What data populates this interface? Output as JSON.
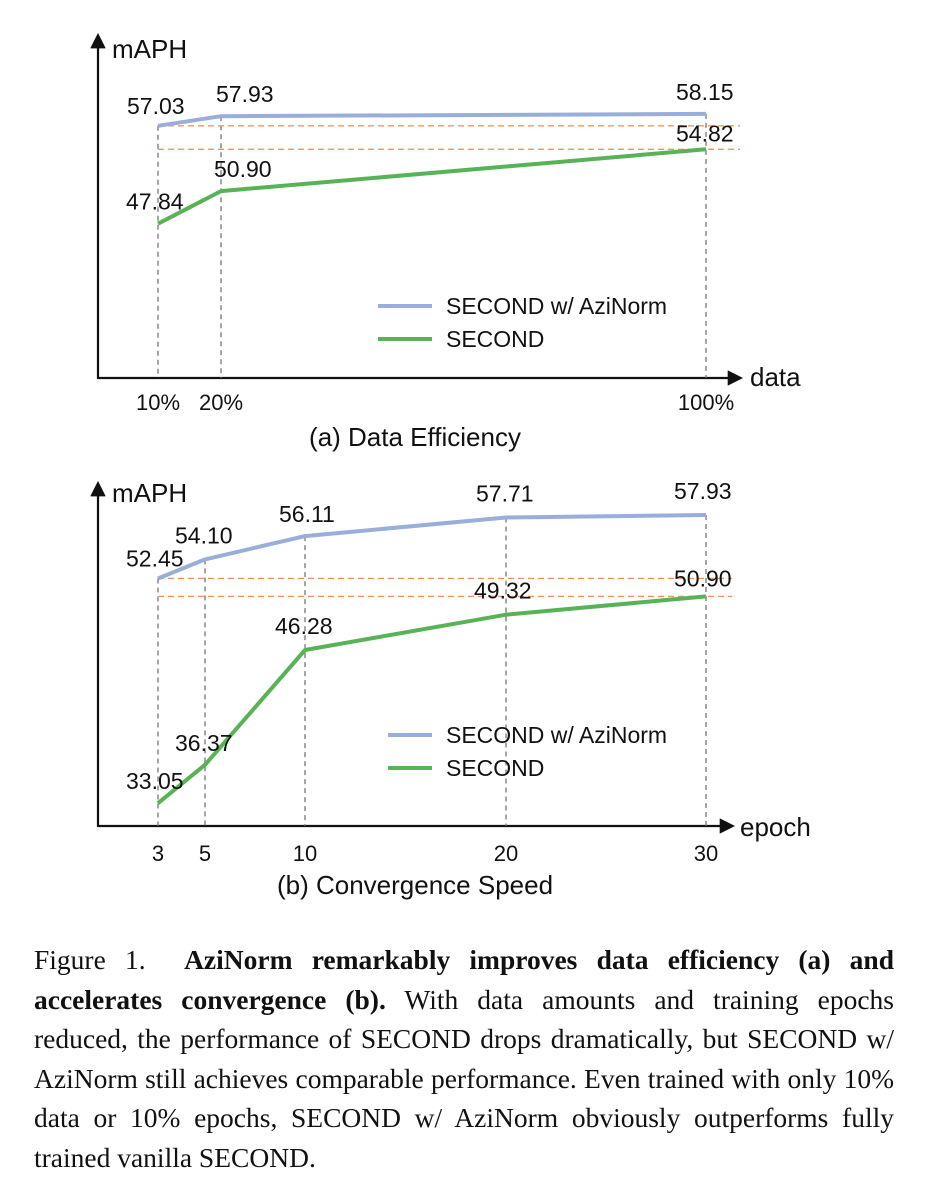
{
  "chart_data": [
    {
      "type": "line",
      "caption": "(a) Data Efficiency",
      "ylabel": "mAPH",
      "xlabel": "data",
      "categories": [
        "10%",
        "20%",
        "100%"
      ],
      "x": [
        10,
        20,
        100
      ],
      "series": [
        {
          "name": "SECOND w/ AziNorm",
          "values": [
            57.03,
            57.93,
            58.15
          ],
          "labels": [
            "57.03",
            "57.93",
            "58.15"
          ],
          "color": "#9aaedb"
        },
        {
          "name": "SECOND",
          "values": [
            47.84,
            50.9,
            54.82
          ],
          "labels": [
            "47.84",
            "50.90",
            "54.82"
          ],
          "color": "#58b357"
        }
      ],
      "reference_lines": [
        57.03,
        54.82
      ],
      "reference_color": "#f0965a",
      "legend": "center-right",
      "grid": false
    },
    {
      "type": "line",
      "caption": "(b) Convergence Speed",
      "ylabel": "mAPH",
      "xlabel": "epoch",
      "categories": [
        "3",
        "5",
        "10",
        "20",
        "30"
      ],
      "x": [
        3,
        5,
        10,
        20,
        30
      ],
      "series": [
        {
          "name": "SECOND w/ AziNorm",
          "values": [
            52.45,
            54.1,
            56.11,
            57.71,
            57.93
          ],
          "labels": [
            "52.45",
            "54.10",
            "56.11",
            "57.71",
            "57.93"
          ],
          "color": "#9aaedb"
        },
        {
          "name": "SECOND",
          "values": [
            33.05,
            36.37,
            46.28,
            49.32,
            50.9
          ],
          "labels": [
            "33.05",
            "36.37",
            "46.28",
            "49.32",
            "50.90"
          ],
          "color": "#58b357"
        }
      ],
      "reference_lines": [
        52.45,
        50.9
      ],
      "reference_color": "#f0965a",
      "legend": "bottom-right",
      "grid": false
    }
  ],
  "caption": {
    "label": "Figure 1.",
    "bold": "AziNorm remarkably improves data efficiency (a) and accelerates convergence (b).",
    "text": "With data amounts and training epochs reduced, the performance of SECOND drops dramatically, but SECOND w/ AziNorm still achieves comparable performance. Even trained with only 10% data or 10% epochs, SECOND w/ AziNorm obviously outperforms fully trained vanilla SECOND."
  }
}
